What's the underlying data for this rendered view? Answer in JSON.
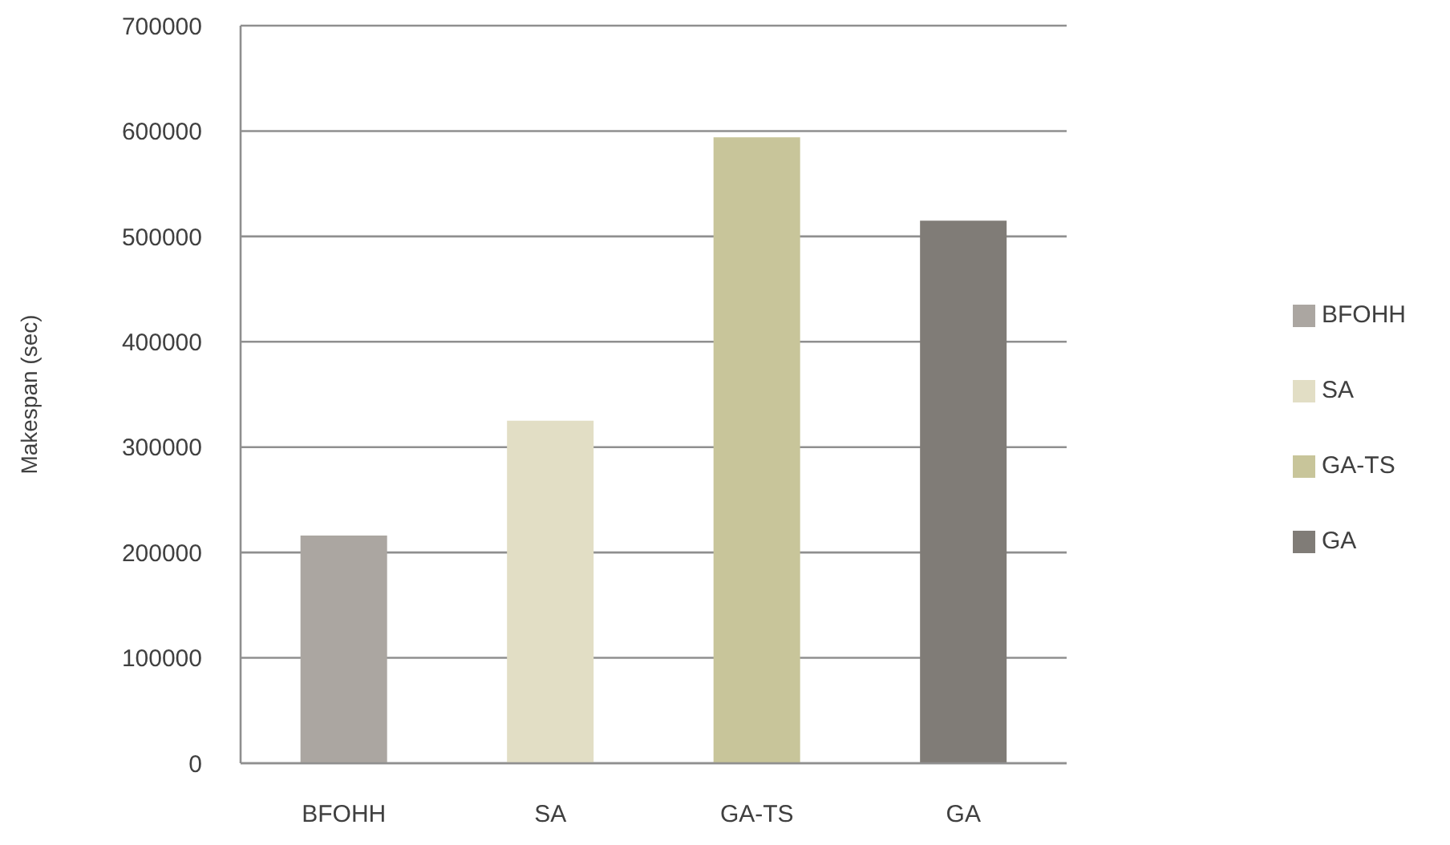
{
  "chart_data": {
    "type": "bar",
    "ylabel": "Makespan (sec)",
    "categories": [
      "BFOHH",
      "SA",
      "GA-TS",
      "GA"
    ],
    "series": [
      {
        "name": "BFOHH",
        "color": "#aba6a1",
        "values": [
          216000,
          null,
          null,
          null
        ]
      },
      {
        "name": "SA",
        "color": "#e2dec5",
        "values": [
          null,
          325000,
          null,
          null
        ]
      },
      {
        "name": "GA-TS",
        "color": "#c8c59a",
        "values": [
          null,
          null,
          594000,
          null
        ]
      },
      {
        "name": "GA",
        "color": "#807c77",
        "values": [
          null,
          null,
          null,
          515000
        ]
      }
    ],
    "stacked": true,
    "ylim": [
      0,
      700000
    ],
    "yticks": [
      0,
      100000,
      200000,
      300000,
      400000,
      500000,
      600000,
      700000
    ],
    "grid": "y",
    "legend": "right"
  }
}
